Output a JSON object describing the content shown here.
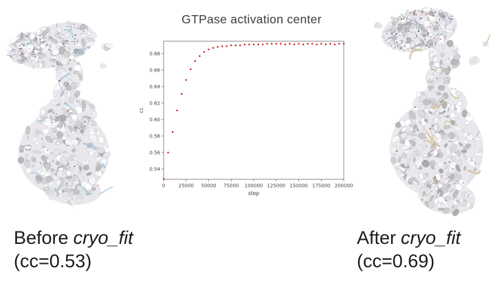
{
  "slide": {
    "background": "#ffffff"
  },
  "captions": {
    "before": {
      "prefix": "Before",
      "italic": "cryo_fit",
      "line2": "(cc=0.53)"
    },
    "after": {
      "prefix": "After",
      "italic": "cryo_fit",
      "line2": "(cc=0.69)"
    }
  },
  "molecules": {
    "before": {
      "label": "cryo-EM density map before fitting",
      "surface_color": "#d9d9de",
      "ribbon_color": "#a6c6dc"
    },
    "after": {
      "label": "cryo-EM density map after fitting",
      "surface_color": "#d9d9de",
      "ribbon_color": "#d5bf96"
    }
  },
  "chart_data": {
    "type": "scatter",
    "title": "GTPase activation center",
    "xlabel": "step",
    "ylabel": "cc",
    "xlim": [
      0,
      200000
    ],
    "ylim": [
      0.5275,
      0.695
    ],
    "x_ticks": [
      0,
      25000,
      50000,
      75000,
      100000,
      125000,
      150000,
      175000,
      200000
    ],
    "y_ticks": [
      0.54,
      0.56,
      0.58,
      0.6,
      0.62,
      0.64,
      0.66,
      0.68
    ],
    "grid": false,
    "legend": false,
    "marker_color": "#cc2020",
    "x": [
      0,
      5000,
      10000,
      15000,
      20000,
      25000,
      30000,
      35000,
      40000,
      45000,
      50000,
      55000,
      60000,
      65000,
      70000,
      75000,
      80000,
      85000,
      90000,
      95000,
      100000,
      105000,
      110000,
      115000,
      120000,
      125000,
      130000,
      135000,
      140000,
      145000,
      150000,
      155000,
      160000,
      165000,
      170000,
      175000,
      180000,
      185000,
      190000,
      195000,
      200000
    ],
    "y": [
      0.528,
      0.56,
      0.585,
      0.611,
      0.631,
      0.648,
      0.661,
      0.671,
      0.677,
      0.682,
      0.685,
      0.687,
      0.688,
      0.689,
      0.689,
      0.69,
      0.69,
      0.69,
      0.691,
      0.691,
      0.691,
      0.691,
      0.691,
      0.692,
      0.692,
      0.692,
      0.692,
      0.691,
      0.692,
      0.691,
      0.692,
      0.691,
      0.692,
      0.692,
      0.691,
      0.692,
      0.691,
      0.692,
      0.691,
      0.692,
      0.692
    ]
  }
}
